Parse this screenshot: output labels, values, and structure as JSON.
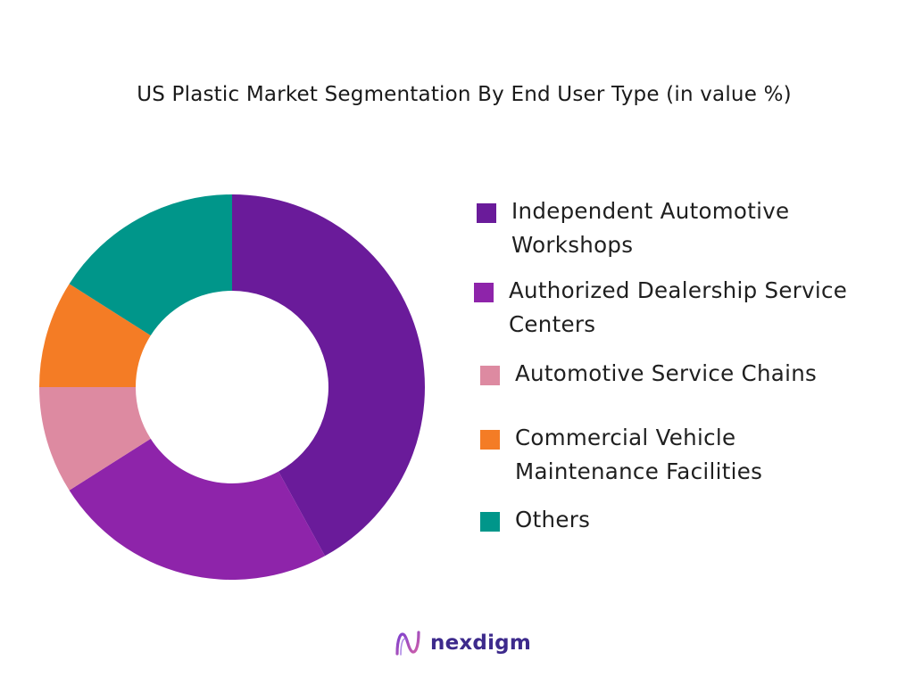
{
  "chart_data": {
    "type": "pie",
    "title": "US Plastic Market Segmentation By End User Type (in value %)",
    "donut": true,
    "legend_position": "right",
    "series": [
      {
        "name": "Independent Automotive Workshops",
        "value": 42,
        "color": "#6a1b9a"
      },
      {
        "name": "Authorized Dealership Service Centers",
        "value": 24,
        "color": "#8e24aa"
      },
      {
        "name": "Automotive Service Chains",
        "value": 9,
        "color": "#dd8aa1"
      },
      {
        "name": "Commercial Vehicle Maintenance Facilities",
        "value": 9,
        "color": "#f47c25"
      },
      {
        "name": "Others",
        "value": 16,
        "color": "#00968a"
      }
    ]
  },
  "legend": {
    "items": [
      {
        "line1": "Independent Automotive",
        "line2": "Workshops",
        "color": "#6a1b9a"
      },
      {
        "line1": "Authorized Dealership Service",
        "line2": "Centers",
        "color": "#8e24aa"
      },
      {
        "line1": "Automotive Service Chains",
        "line2": "",
        "color": "#dd8aa1"
      },
      {
        "line1": "Commercial Vehicle",
        "line2": "Maintenance Facilities",
        "color": "#f47c25"
      },
      {
        "line1": "Others",
        "line2": "",
        "color": "#00968a"
      }
    ]
  },
  "brand": {
    "name": "nexdigm",
    "icon": "nexdigm-logo-icon"
  }
}
